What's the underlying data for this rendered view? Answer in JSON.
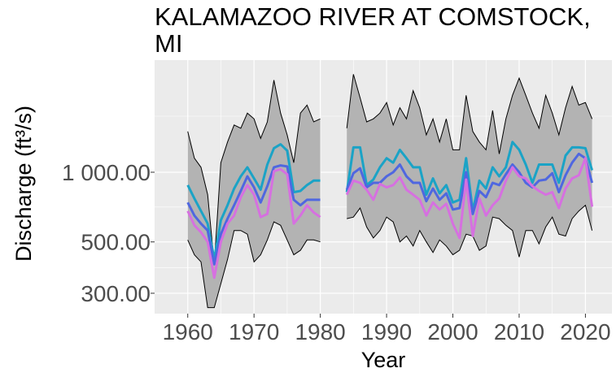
{
  "chart_data": {
    "type": "line",
    "title": "KALAMAZOO RIVER AT COMSTOCK, MI",
    "xlabel": "Year",
    "ylabel": "Discharge (ft³/s)",
    "y_scale": "log",
    "ylim": [
      245,
      3050
    ],
    "xlim": [
      1955,
      2024
    ],
    "x_ticks": [
      1960,
      1970,
      1980,
      1990,
      2000,
      2010,
      2020
    ],
    "x_tick_labels": [
      "1960",
      "1970",
      "1980",
      "1990",
      "2000",
      "2010",
      "2020"
    ],
    "y_ticks": [
      300,
      500,
      1000
    ],
    "y_tick_labels": [
      "300.00",
      "500.00",
      "1 000.00"
    ],
    "grid": true,
    "colors": {
      "panel": "#ebebeb",
      "grid": "#ffffff",
      "ribbon": "#b3b3b3",
      "series1": "#1ba3c6",
      "series2": "#4f67e0",
      "series3": "#d670e0"
    },
    "segments": [
      {
        "x_start": 1960,
        "x_end": 1980
      },
      {
        "x_start": 1984,
        "x_end": 2021
      }
    ],
    "x": [
      1960,
      1961,
      1962,
      1963,
      1964,
      1965,
      1966,
      1967,
      1968,
      1969,
      1970,
      1971,
      1972,
      1973,
      1974,
      1975,
      1976,
      1977,
      1978,
      1979,
      1980,
      1984,
      1985,
      1986,
      1987,
      1988,
      1989,
      1990,
      1991,
      1992,
      1993,
      1994,
      1995,
      1996,
      1997,
      1998,
      1999,
      2000,
      2001,
      2002,
      2003,
      2004,
      2005,
      2006,
      2007,
      2008,
      2009,
      2010,
      2011,
      2012,
      2013,
      2014,
      2015,
      2016,
      2017,
      2018,
      2019,
      2020,
      2021
    ],
    "ribbon": {
      "upper": [
        1500,
        1150,
        1050,
        800,
        400,
        1100,
        1350,
        1600,
        1550,
        1800,
        1700,
        1400,
        1650,
        2500,
        1800,
        1450,
        1100,
        1800,
        1950,
        1650,
        1700,
        1550,
        2650,
        2100,
        1650,
        1700,
        1800,
        2000,
        1600,
        1900,
        1700,
        2250,
        1900,
        1450,
        1700,
        1350,
        1700,
        1250,
        1250,
        2150,
        1500,
        1350,
        1250,
        1850,
        1200,
        1700,
        2150,
        2550,
        2150,
        1800,
        1550,
        2150,
        1800,
        1450,
        1900,
        2350,
        1950,
        2000,
        1700
      ],
      "lower": [
        510,
        440,
        410,
        260,
        260,
        330,
        420,
        560,
        560,
        540,
        410,
        440,
        510,
        610,
        590,
        510,
        440,
        460,
        510,
        510,
        500,
        630,
        640,
        700,
        580,
        520,
        560,
        640,
        610,
        500,
        530,
        480,
        560,
        500,
        450,
        510,
        480,
        440,
        460,
        540,
        530,
        460,
        480,
        640,
        630,
        590,
        560,
        430,
        560,
        560,
        490,
        580,
        640,
        540,
        530,
        630,
        680,
        720,
        560
      ]
    },
    "series": [
      {
        "values": [
          880,
          770,
          680,
          600,
          420,
          620,
          720,
          850,
          960,
          1050,
          940,
          840,
          1080,
          1270,
          1320,
          1240,
          820,
          830,
          880,
          920,
          920,
          820,
          1280,
          1280,
          880,
          930,
          1050,
          1150,
          1100,
          1250,
          1150,
          1050,
          1050,
          800,
          940,
          810,
          880,
          740,
          760,
          1150,
          680,
          920,
          850,
          1050,
          960,
          1050,
          1350,
          1250,
          1080,
          900,
          1080,
          1080,
          1080,
          900,
          1180,
          1280,
          1280,
          1270,
          1020
        ]
      },
      {
        "values": [
          740,
          650,
          600,
          560,
          400,
          540,
          630,
          720,
          830,
          960,
          860,
          740,
          870,
          1050,
          1070,
          1060,
          760,
          720,
          760,
          760,
          760,
          840,
          990,
          1040,
          860,
          900,
          900,
          960,
          1000,
          1080,
          960,
          900,
          900,
          750,
          850,
          760,
          810,
          690,
          700,
          1000,
          660,
          830,
          780,
          900,
          880,
          980,
          1080,
          1000,
          900,
          860,
          920,
          930,
          990,
          820,
          970,
          1100,
          1200,
          1150,
          900
        ]
      },
      {
        "values": [
          680,
          590,
          550,
          500,
          350,
          500,
          600,
          650,
          780,
          880,
          800,
          640,
          660,
          1010,
          1030,
          980,
          600,
          650,
          720,
          670,
          640,
          800,
          920,
          900,
          840,
          760,
          890,
          860,
          880,
          950,
          840,
          800,
          760,
          650,
          740,
          690,
          730,
          600,
          520,
          930,
          530,
          770,
          650,
          720,
          770,
          920,
          1050,
          960,
          940,
          870,
          830,
          800,
          820,
          700,
          850,
          940,
          970,
          1150,
          710
        ]
      }
    ]
  }
}
